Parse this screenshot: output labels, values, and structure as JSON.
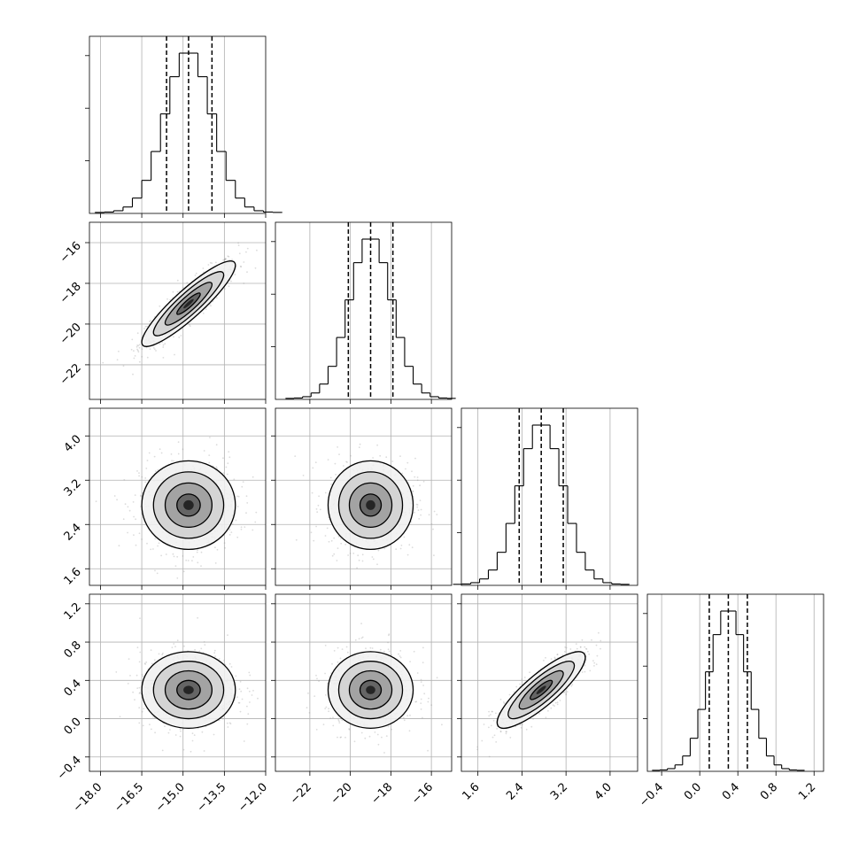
{
  "chart_data": {
    "type": "corner",
    "grid": true,
    "variables": [
      {
        "range": [
          -18.4,
          -12.0
        ],
        "ticks": [
          -18.0,
          -16.5,
          -15.0,
          -13.5,
          -12.0
        ],
        "tick_labels": [
          "−18.0",
          "−16.5",
          "−15.0",
          "−13.5",
          "−12.0"
        ],
        "quantiles": [
          -15.6,
          -14.8,
          -13.95
        ],
        "mean": -14.8,
        "std": 0.85
      },
      {
        "range": [
          -23.7,
          -15.0
        ],
        "ticks": [
          -22,
          -20,
          -18,
          -16
        ],
        "tick_labels": [
          "−22",
          "−20",
          "−18",
          "−16"
        ],
        "quantiles": [
          -20.1,
          -19.0,
          -17.9
        ],
        "mean": -19.0,
        "std": 1.05
      },
      {
        "range": [
          1.3,
          4.5
        ],
        "ticks": [
          1.6,
          2.4,
          3.2,
          4.0
        ],
        "tick_labels": [
          "1.6",
          "2.4",
          "3.2",
          "4.0"
        ],
        "quantiles": [
          2.35,
          2.75,
          3.15
        ],
        "mean": 2.75,
        "std": 0.4
      },
      {
        "range": [
          -0.55,
          1.3
        ],
        "ticks": [
          -0.4,
          0.0,
          0.4,
          0.8,
          1.2
        ],
        "tick_labels": [
          "−0.4",
          "0.0",
          "0.4",
          "0.8",
          "1.2"
        ],
        "quantiles": [
          0.1,
          0.3,
          0.5
        ],
        "mean": 0.3,
        "std": 0.2
      }
    ],
    "correlations": [
      [
        1.0,
        0.9,
        0.0,
        0.0
      ],
      [
        0.9,
        1.0,
        0.0,
        0.0
      ],
      [
        0.0,
        0.0,
        1.0,
        0.85
      ],
      [
        0.0,
        0.0,
        0.85,
        1.0
      ]
    ],
    "histogram_bins": 20,
    "contour_levels_sigma": [
      0.5,
      1.0,
      1.5,
      2.0
    ]
  }
}
